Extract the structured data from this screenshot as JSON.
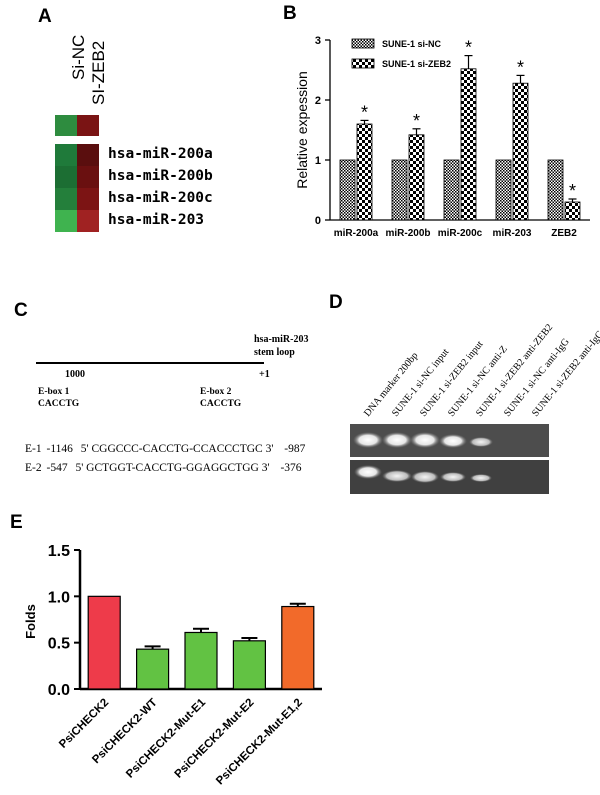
{
  "panels": {
    "A": "A",
    "B": "B",
    "C": "C",
    "D": "D",
    "E": "E"
  },
  "panel_a": {
    "columns": [
      "Si-NC",
      "SI-ZEB2"
    ],
    "top_cells": [
      "#2e8c3f",
      "#7a1414"
    ],
    "rows": [
      {
        "label": "hsa-miR-200a",
        "colors": [
          "#1f7a3a",
          "#5a0e0e"
        ]
      },
      {
        "label": "hsa-miR-200b",
        "colors": [
          "#1c6e33",
          "#6a1010"
        ]
      },
      {
        "label": "hsa-miR-200c",
        "colors": [
          "#247f3b",
          "#7c1414"
        ]
      },
      {
        "label": "hsa-miR-203",
        "colors": [
          "#3fb34f",
          "#a02222"
        ]
      }
    ]
  },
  "panel_c": {
    "header": [
      "hsa-miR-203",
      "stem loop"
    ],
    "pos_left": "1000",
    "pos_right": "+1",
    "ebox1": [
      "E-box 1",
      "CACCTG"
    ],
    "ebox2": [
      "E-box 2",
      "CACCTG"
    ],
    "seq1": {
      "name": "E-1",
      "start": "-1146",
      "seq": "5' CGGCCC-CACCTG-CCACCCTGC  3'",
      "end": "-987"
    },
    "seq2": {
      "name": "E-2",
      "start": "-547",
      "seq": "5' GCTGGT-CACCTG-GGAGGCTGG 3'",
      "end": "-376"
    }
  },
  "panel_d": {
    "lanes": [
      "DNA marker 200bp",
      "SUNE-1 si-NC input",
      "SUNE-1 si-ZEB2 input",
      "SUNE-1 si-NC anti-Z",
      "SUNE-1 si-ZEB2 anti-ZEB2",
      "SUNE-1 si-NC anti-IgG",
      "SUNE-1 si-ZEB2 anti-IgG"
    ]
  },
  "chart_data": [
    {
      "panel": "B",
      "type": "bar",
      "categories": [
        "miR-200a",
        "miR-200b",
        "miR-200c",
        "miR-203",
        "ZEB2"
      ],
      "series": [
        {
          "name": "SUNE-1 si-NC",
          "values": [
            1,
            1,
            1,
            1,
            1
          ]
        },
        {
          "name": "SUNE-1 si-ZEB2",
          "values": [
            1.6,
            1.42,
            2.52,
            2.28,
            0.3
          ],
          "errors": [
            0.06,
            0.1,
            0.22,
            0.13,
            0.05
          ]
        }
      ],
      "significance": [
        "*",
        "*",
        "*",
        "*",
        "*"
      ],
      "ylabel": "Relative expession",
      "ylim": [
        0,
        3
      ],
      "yticks": [
        "0",
        "1",
        "2",
        "3"
      ],
      "legend": "top-left"
    },
    {
      "panel": "E",
      "type": "bar",
      "categories": [
        "PsiCHECK2",
        "PsiCHECK2-WT",
        "PsiCHECK2-Mut-E1",
        "PsiCHECK2-Mut-E2",
        "PsiCHECK2-Mut-E1,2"
      ],
      "values": [
        1.0,
        0.43,
        0.61,
        0.52,
        0.89
      ],
      "errors": [
        0,
        0.03,
        0.04,
        0.03,
        0.03
      ],
      "colors": [
        "#ee3b4a",
        "#62c243",
        "#62c243",
        "#62c243",
        "#f26a2a"
      ],
      "ylabel": "Folds",
      "ylim": [
        0,
        1.5
      ],
      "yticks": [
        "0.0",
        "0.5",
        "1.0",
        "1.5"
      ]
    }
  ]
}
